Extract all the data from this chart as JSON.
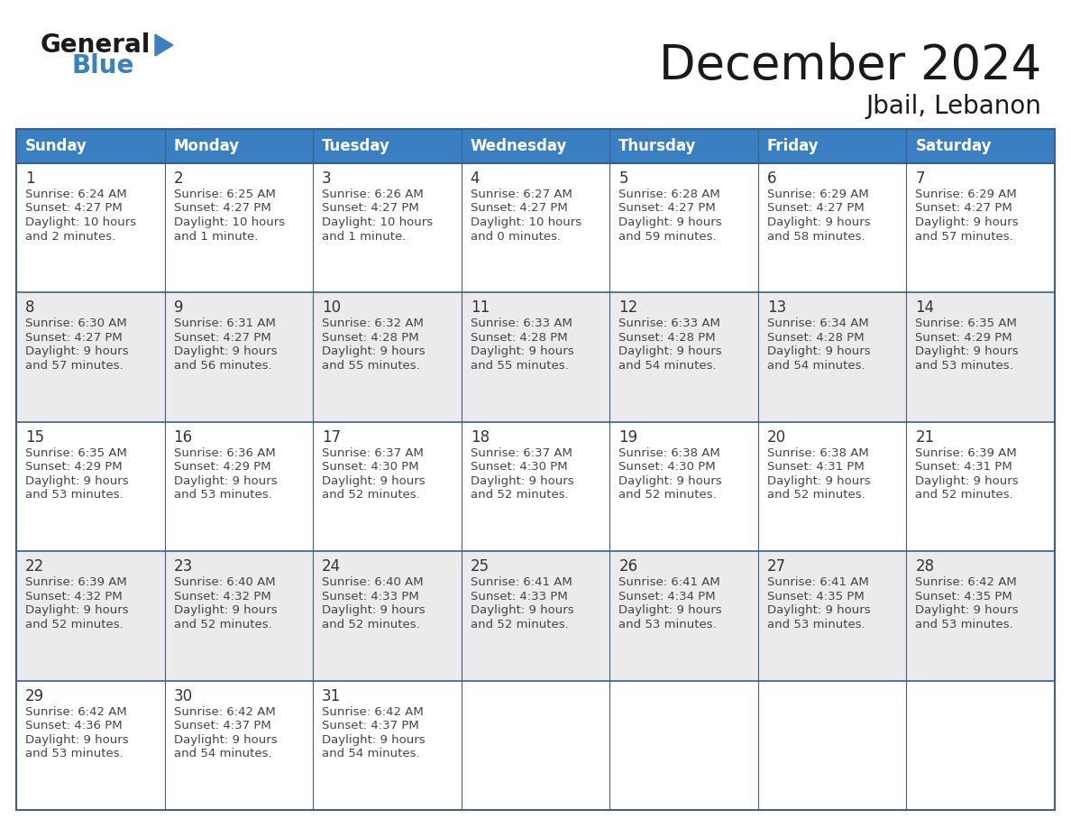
{
  "title": "December 2024",
  "subtitle": "Jbail, Lebanon",
  "days_of_week": [
    "Sunday",
    "Monday",
    "Tuesday",
    "Wednesday",
    "Thursday",
    "Friday",
    "Saturday"
  ],
  "header_bg": "#3A7FC1",
  "header_text_color": "#FFFFFF",
  "row_bg_even": "#EBEBEB",
  "row_bg_odd": "#FFFFFF",
  "cell_border_color": "#3A5F8A",
  "day_num_color": "#333333",
  "text_color": "#444444",
  "title_color": "#1a1a1a",
  "logo_general_color": "#1a1a1a",
  "logo_blue_color": "#3A7FC1",
  "calendar_data": [
    [
      {
        "day": 1,
        "sunrise": "6:24 AM",
        "sunset": "4:27 PM",
        "daylight_h": "10 hours",
        "daylight_m": "2 minutes."
      },
      {
        "day": 2,
        "sunrise": "6:25 AM",
        "sunset": "4:27 PM",
        "daylight_h": "10 hours",
        "daylight_m": "1 minute."
      },
      {
        "day": 3,
        "sunrise": "6:26 AM",
        "sunset": "4:27 PM",
        "daylight_h": "10 hours",
        "daylight_m": "1 minute."
      },
      {
        "day": 4,
        "sunrise": "6:27 AM",
        "sunset": "4:27 PM",
        "daylight_h": "10 hours",
        "daylight_m": "0 minutes."
      },
      {
        "day": 5,
        "sunrise": "6:28 AM",
        "sunset": "4:27 PM",
        "daylight_h": "9 hours",
        "daylight_m": "59 minutes."
      },
      {
        "day": 6,
        "sunrise": "6:29 AM",
        "sunset": "4:27 PM",
        "daylight_h": "9 hours",
        "daylight_m": "58 minutes."
      },
      {
        "day": 7,
        "sunrise": "6:29 AM",
        "sunset": "4:27 PM",
        "daylight_h": "9 hours",
        "daylight_m": "57 minutes."
      }
    ],
    [
      {
        "day": 8,
        "sunrise": "6:30 AM",
        "sunset": "4:27 PM",
        "daylight_h": "9 hours",
        "daylight_m": "57 minutes."
      },
      {
        "day": 9,
        "sunrise": "6:31 AM",
        "sunset": "4:27 PM",
        "daylight_h": "9 hours",
        "daylight_m": "56 minutes."
      },
      {
        "day": 10,
        "sunrise": "6:32 AM",
        "sunset": "4:28 PM",
        "daylight_h": "9 hours",
        "daylight_m": "55 minutes."
      },
      {
        "day": 11,
        "sunrise": "6:33 AM",
        "sunset": "4:28 PM",
        "daylight_h": "9 hours",
        "daylight_m": "55 minutes."
      },
      {
        "day": 12,
        "sunrise": "6:33 AM",
        "sunset": "4:28 PM",
        "daylight_h": "9 hours",
        "daylight_m": "54 minutes."
      },
      {
        "day": 13,
        "sunrise": "6:34 AM",
        "sunset": "4:28 PM",
        "daylight_h": "9 hours",
        "daylight_m": "54 minutes."
      },
      {
        "day": 14,
        "sunrise": "6:35 AM",
        "sunset": "4:29 PM",
        "daylight_h": "9 hours",
        "daylight_m": "53 minutes."
      }
    ],
    [
      {
        "day": 15,
        "sunrise": "6:35 AM",
        "sunset": "4:29 PM",
        "daylight_h": "9 hours",
        "daylight_m": "53 minutes."
      },
      {
        "day": 16,
        "sunrise": "6:36 AM",
        "sunset": "4:29 PM",
        "daylight_h": "9 hours",
        "daylight_m": "53 minutes."
      },
      {
        "day": 17,
        "sunrise": "6:37 AM",
        "sunset": "4:30 PM",
        "daylight_h": "9 hours",
        "daylight_m": "52 minutes."
      },
      {
        "day": 18,
        "sunrise": "6:37 AM",
        "sunset": "4:30 PM",
        "daylight_h": "9 hours",
        "daylight_m": "52 minutes."
      },
      {
        "day": 19,
        "sunrise": "6:38 AM",
        "sunset": "4:30 PM",
        "daylight_h": "9 hours",
        "daylight_m": "52 minutes."
      },
      {
        "day": 20,
        "sunrise": "6:38 AM",
        "sunset": "4:31 PM",
        "daylight_h": "9 hours",
        "daylight_m": "52 minutes."
      },
      {
        "day": 21,
        "sunrise": "6:39 AM",
        "sunset": "4:31 PM",
        "daylight_h": "9 hours",
        "daylight_m": "52 minutes."
      }
    ],
    [
      {
        "day": 22,
        "sunrise": "6:39 AM",
        "sunset": "4:32 PM",
        "daylight_h": "9 hours",
        "daylight_m": "52 minutes."
      },
      {
        "day": 23,
        "sunrise": "6:40 AM",
        "sunset": "4:32 PM",
        "daylight_h": "9 hours",
        "daylight_m": "52 minutes."
      },
      {
        "day": 24,
        "sunrise": "6:40 AM",
        "sunset": "4:33 PM",
        "daylight_h": "9 hours",
        "daylight_m": "52 minutes."
      },
      {
        "day": 25,
        "sunrise": "6:41 AM",
        "sunset": "4:33 PM",
        "daylight_h": "9 hours",
        "daylight_m": "52 minutes."
      },
      {
        "day": 26,
        "sunrise": "6:41 AM",
        "sunset": "4:34 PM",
        "daylight_h": "9 hours",
        "daylight_m": "53 minutes."
      },
      {
        "day": 27,
        "sunrise": "6:41 AM",
        "sunset": "4:35 PM",
        "daylight_h": "9 hours",
        "daylight_m": "53 minutes."
      },
      {
        "day": 28,
        "sunrise": "6:42 AM",
        "sunset": "4:35 PM",
        "daylight_h": "9 hours",
        "daylight_m": "53 minutes."
      }
    ],
    [
      {
        "day": 29,
        "sunrise": "6:42 AM",
        "sunset": "4:36 PM",
        "daylight_h": "9 hours",
        "daylight_m": "53 minutes."
      },
      {
        "day": 30,
        "sunrise": "6:42 AM",
        "sunset": "4:37 PM",
        "daylight_h": "9 hours",
        "daylight_m": "54 minutes."
      },
      {
        "day": 31,
        "sunrise": "6:42 AM",
        "sunset": "4:37 PM",
        "daylight_h": "9 hours",
        "daylight_m": "54 minutes."
      },
      null,
      null,
      null,
      null
    ]
  ]
}
